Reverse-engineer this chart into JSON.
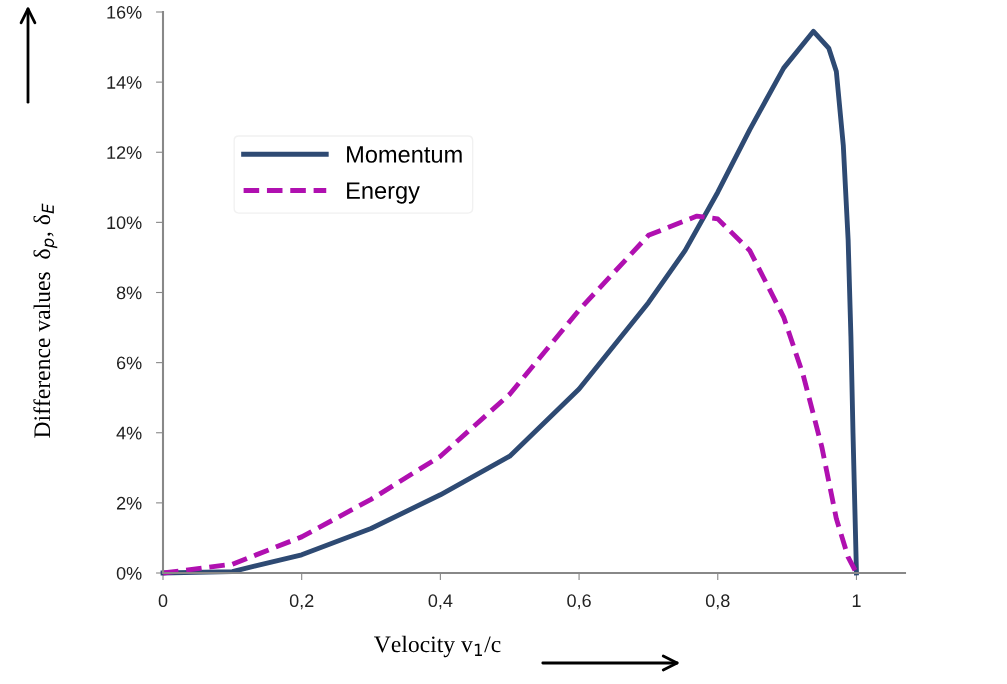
{
  "chart_data": {
    "type": "line",
    "xlabel": "Velocity v$_{1}$/c",
    "ylabel": "Difference values  δ$_{p}$, δ$_{E}$",
    "xlim": [
      0,
      1.07
    ],
    "xticks": [
      0,
      {
        "value": 0.2,
        "label": "0,2"
      },
      {
        "value": 0.4,
        "label": "0,4"
      },
      {
        "value": 0.6,
        "label": "0,6"
      },
      {
        "value": 0.8,
        "label": "0,8"
      },
      1
    ],
    "ylim": [
      0,
      16
    ],
    "yticks": [
      {
        "value": 0,
        "label": "0%"
      },
      {
        "value": 2,
        "label": "2%"
      },
      {
        "value": 4,
        "label": "4%"
      },
      {
        "value": 6,
        "label": "6%"
      },
      {
        "value": 8,
        "label": "8%"
      },
      {
        "value": 10,
        "label": "10%"
      },
      {
        "value": 12,
        "label": "12%"
      },
      {
        "value": 14,
        "label": "14%"
      },
      {
        "value": 16,
        "label": "16%"
      }
    ],
    "grid": false,
    "legend": "top left",
    "series": [
      {
        "name": "Momentum",
        "color": "#2e4a73",
        "line_style": "solid",
        "x": [
          0,
          0.1,
          0.2,
          0.3,
          0.4,
          0.5,
          0.6,
          0.7,
          0.753,
          0.8,
          0.846,
          0.895,
          0.938,
          0.96,
          0.971,
          0.981,
          0.988,
          0.992,
          0.995,
          1
        ],
        "values": [
          0,
          0.04,
          0.52,
          1.27,
          2.23,
          3.33,
          5.25,
          7.71,
          9.2,
          10.86,
          12.64,
          14.4,
          15.45,
          14.97,
          14.3,
          12.2,
          9.5,
          6.75,
          4.0,
          0
        ]
      },
      {
        "name": "Energy",
        "color": "#b010b0",
        "line_style": "dashed",
        "x": [
          0,
          0.1,
          0.2,
          0.3,
          0.4,
          0.5,
          0.6,
          0.7,
          0.77,
          0.8,
          0.846,
          0.895,
          0.923,
          0.95,
          0.971,
          0.988,
          1
        ],
        "values": [
          0,
          0.25,
          1.03,
          2.1,
          3.33,
          5.1,
          7.5,
          9.63,
          10.18,
          10.1,
          9.2,
          7.3,
          5.66,
          3.6,
          1.55,
          0.45,
          0
        ]
      }
    ]
  }
}
